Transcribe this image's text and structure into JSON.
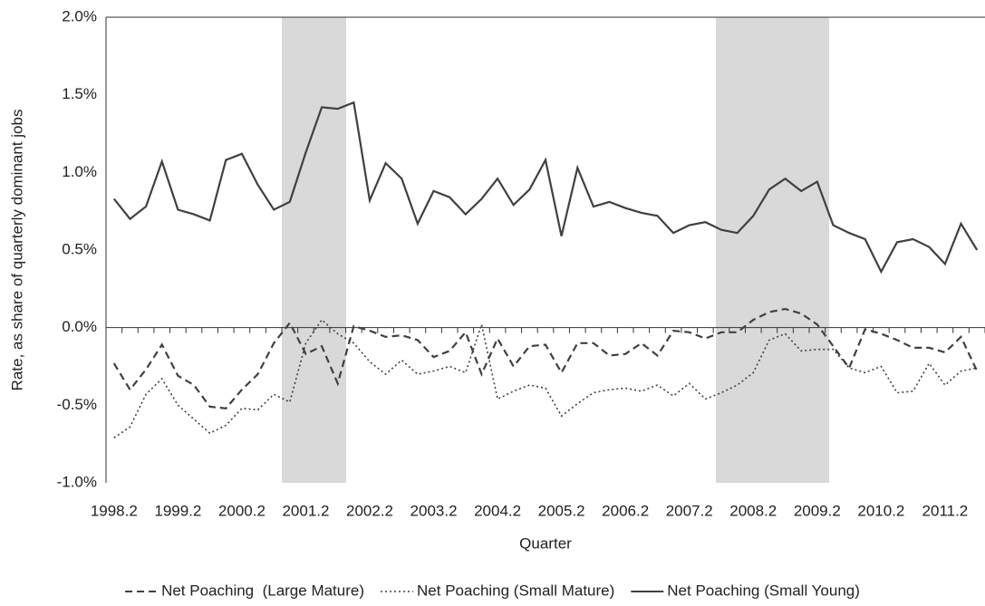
{
  "chart_data": {
    "type": "line",
    "y_axis_label": "Rate, as share of quarterly dominant jobs",
    "x_axis_label": "Quarter",
    "categories": [
      "1998.2",
      null,
      null,
      null,
      "1999.2",
      null,
      null,
      null,
      "2000.2",
      null,
      null,
      null,
      "2001.2",
      null,
      null,
      null,
      "2002.2",
      null,
      null,
      null,
      "2003.2",
      null,
      null,
      null,
      "2004.2",
      null,
      null,
      null,
      "2005.2",
      null,
      null,
      null,
      "2006.2",
      null,
      null,
      null,
      "2007.2",
      null,
      null,
      null,
      "2008.2",
      null,
      null,
      null,
      "2009.2",
      null,
      null,
      null,
      "2010.2",
      null,
      null,
      null,
      "2011.2",
      null,
      null
    ],
    "ylim": [
      -1,
      2
    ],
    "yticks": [
      {
        "value": -1,
        "label": "-1.0%"
      },
      {
        "value": -0.5,
        "label": "-0.5%"
      },
      {
        "value": 0,
        "label": "0.0%"
      },
      {
        "value": 0.5,
        "label": "0.5%"
      },
      {
        "value": 1,
        "label": "1.0%"
      },
      {
        "value": 1.5,
        "label": "1.5%"
      },
      {
        "value": 2,
        "label": "2.0%"
      }
    ],
    "legend_position": "bottom",
    "series": [
      {
        "name": "Net Poaching  (Large Mature)",
        "color": "#404040",
        "dash": "dashed",
        "values": [
          -0.23,
          -0.4,
          -0.27,
          -0.11,
          -0.31,
          -0.37,
          -0.51,
          -0.52,
          -0.4,
          -0.3,
          -0.1,
          0.03,
          -0.17,
          -0.12,
          -0.36,
          0.01,
          -0.02,
          -0.06,
          -0.05,
          -0.08,
          -0.19,
          -0.15,
          -0.03,
          -0.3,
          -0.07,
          -0.25,
          -0.12,
          -0.11,
          -0.29,
          -0.1,
          -0.1,
          -0.18,
          -0.17,
          -0.1,
          -0.18,
          -0.02,
          -0.03,
          -0.07,
          -0.03,
          -0.03,
          0.05,
          0.1,
          0.12,
          0.09,
          0.02,
          -0.12,
          -0.26,
          -0.01,
          -0.04,
          -0.08,
          -0.13,
          -0.13,
          -0.16,
          -0.06,
          -0.28
        ]
      },
      {
        "name": "Net Poaching (Small Mature)",
        "color": "#404040",
        "dash": "dotted",
        "values": [
          -0.71,
          -0.64,
          -0.43,
          -0.33,
          -0.5,
          -0.59,
          -0.68,
          -0.63,
          -0.52,
          -0.53,
          -0.43,
          -0.48,
          -0.1,
          0.05,
          -0.04,
          -0.1,
          -0.22,
          -0.3,
          -0.21,
          -0.3,
          -0.28,
          -0.25,
          -0.29,
          0.02,
          -0.46,
          -0.41,
          -0.37,
          -0.39,
          -0.57,
          -0.49,
          -0.42,
          -0.4,
          -0.39,
          -0.41,
          -0.37,
          -0.44,
          -0.36,
          -0.46,
          -0.42,
          -0.37,
          -0.29,
          -0.08,
          -0.04,
          -0.15,
          -0.14,
          -0.14,
          -0.26,
          -0.29,
          -0.25,
          -0.42,
          -0.41,
          -0.23,
          -0.37,
          -0.28,
          -0.26
        ]
      },
      {
        "name": "Net Poaching (Small Young)",
        "color": "#404040",
        "dash": "solid",
        "values": [
          0.83,
          0.7,
          0.78,
          1.07,
          0.76,
          0.73,
          0.69,
          1.08,
          1.12,
          0.92,
          0.76,
          0.81,
          1.13,
          1.42,
          1.41,
          1.45,
          0.82,
          1.06,
          0.96,
          0.67,
          0.88,
          0.84,
          0.73,
          0.83,
          0.96,
          0.79,
          0.89,
          1.08,
          0.59,
          1.03,
          0.78,
          0.81,
          0.77,
          0.74,
          0.72,
          0.61,
          0.66,
          0.68,
          0.63,
          0.61,
          0.72,
          0.89,
          0.96,
          0.88,
          0.94,
          0.66,
          0.61,
          0.57,
          0.36,
          0.55,
          0.57,
          0.52,
          0.41,
          0.67,
          0.5
        ]
      }
    ]
  }
}
